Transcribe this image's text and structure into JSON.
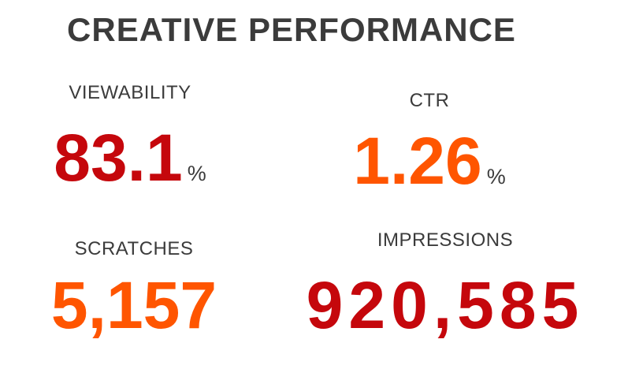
{
  "title": "CREATIVE PERFORMANCE",
  "metrics": [
    {
      "label": "VIEWABILITY",
      "value": "83.1",
      "unit": "%",
      "color": "#c5070c"
    },
    {
      "label": "CTR",
      "value": "1.26",
      "unit": "%",
      "color": "#ff5500"
    },
    {
      "label": "SCRATCHES",
      "value": "5,157",
      "color": "#ff5500"
    },
    {
      "label": "IMPRESSIONS",
      "value": "920,585",
      "color": "#c5070c"
    }
  ]
}
